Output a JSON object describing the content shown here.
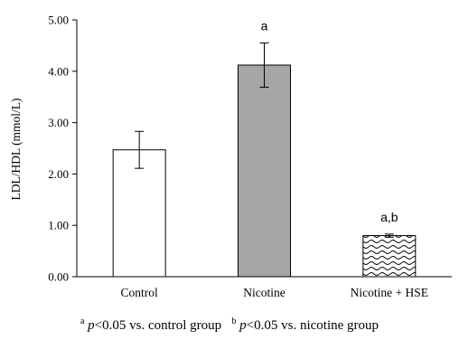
{
  "chart_data": {
    "type": "bar",
    "ylabel": "LDL/HDL (mmol/L)",
    "ylim": [
      0,
      5
    ],
    "yticks": [
      "0.00",
      "1.00",
      "2.00",
      "3.00",
      "4.00",
      "5.00"
    ],
    "categories": [
      "Control",
      "Nicotine",
      "Nicotine + HSE"
    ],
    "values": [
      2.47,
      4.12,
      0.8
    ],
    "errors": [
      0.36,
      0.43,
      0.03
    ],
    "bar_fills": [
      "#ffffff",
      "#a6a6a6",
      "pattern-wave"
    ],
    "annotations": [
      "",
      "a",
      "a,b"
    ],
    "grid": false
  },
  "footnote": {
    "a_sup": "a",
    "a_p": "p",
    "a_text": "<0.05 vs. control group",
    "b_sup": "b",
    "b_p": "p",
    "b_text": "<0.05 vs. nicotine group"
  }
}
